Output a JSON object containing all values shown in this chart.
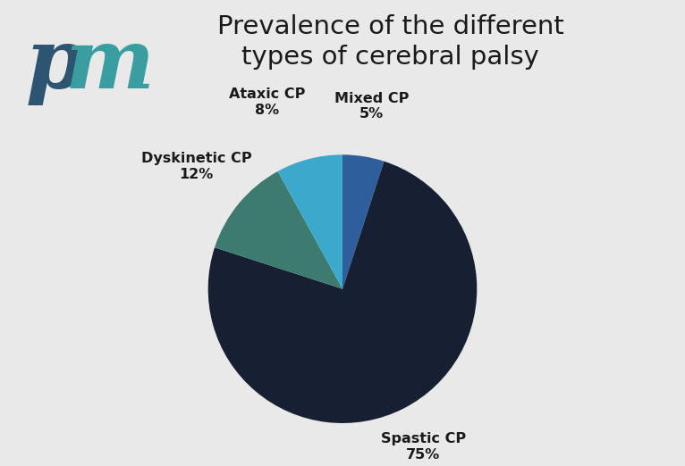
{
  "title": "Prevalence of the different\ntypes of cerebral palsy",
  "slices": [
    {
      "label": "Spastic CP",
      "pct": 75,
      "color": "#162032"
    },
    {
      "label": "Dyskinetic CP",
      "pct": 12,
      "color": "#3d7a70"
    },
    {
      "label": "Ataxic CP",
      "pct": 8,
      "color": "#3ba8cc"
    },
    {
      "label": "Mixed CP",
      "pct": 5,
      "color": "#2e5f9c"
    }
  ],
  "bg_color": "#e9e9e9",
  "label_fontsize": 11.5,
  "title_fontsize": 21,
  "title_color": "#1a1a1a",
  "label_color": "#1a1a1a",
  "logo_color_p": "#2d5470",
  "logo_color_m": "#3a9ea0"
}
